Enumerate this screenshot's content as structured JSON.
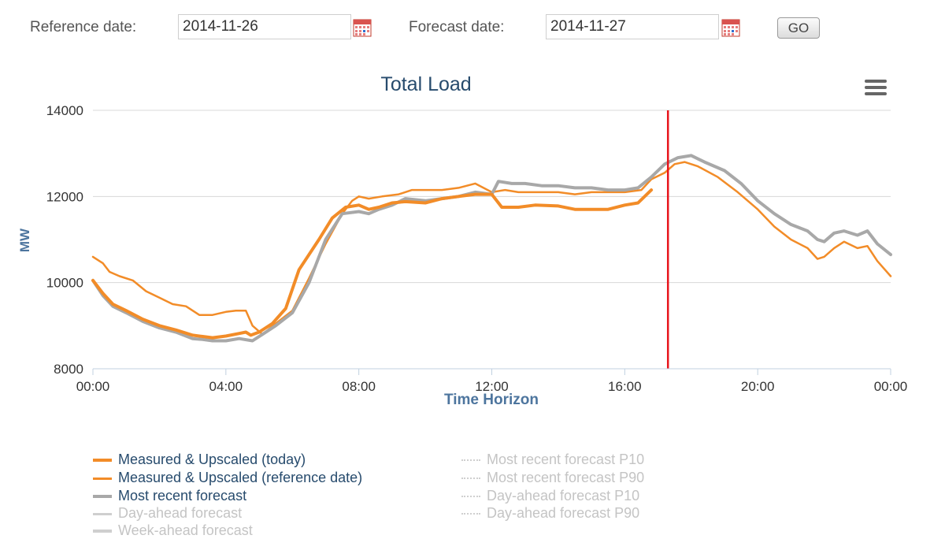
{
  "controls": {
    "reference_label": "Reference date:",
    "reference_value": "2014-11-26",
    "forecast_label": "Forecast date:",
    "forecast_value": "2014-11-27",
    "go_label": "GO",
    "calendar_icon": "calendar-icon"
  },
  "menu_icon": "hamburger-menu-icon",
  "colors": {
    "orange": "#f28c28",
    "gray": "#a8a8a8",
    "light_gray": "#cfcfcf",
    "red_marker": "#e8141b",
    "title": "#274b6d",
    "axis_title": "#4d759e",
    "grid": "#d8d8d8"
  },
  "chart_data": {
    "type": "line",
    "title": "Total Load",
    "xlabel": "Time Horizon",
    "ylabel": "MW",
    "xlim": [
      0,
      24
    ],
    "ylim": [
      8000,
      14000
    ],
    "y_ticks": [
      "8000",
      "10000",
      "12000",
      "14000"
    ],
    "x_ticks": [
      "00:00",
      "04:00",
      "08:00",
      "12:00",
      "16:00",
      "20:00",
      "00:00"
    ],
    "grid": "horizontal",
    "current_time_marker": 17.3,
    "series": [
      {
        "name": "Measured & Upscaled (today)",
        "style": "thick-orange",
        "x": [
          0,
          0.3,
          0.6,
          1,
          1.5,
          2,
          2.5,
          3,
          3.3,
          3.6,
          4,
          4.4,
          4.6,
          4.75,
          5,
          5.4,
          5.8,
          6.2,
          6.8,
          7.2,
          7.6,
          8,
          8.3,
          8.6,
          9,
          9.4,
          10,
          10.5,
          11,
          11.5,
          12,
          12.3,
          12.8,
          13.3,
          14,
          14.5,
          15,
          15.5,
          16,
          16.4,
          16.8
        ],
        "values": [
          10050,
          9750,
          9500,
          9350,
          9150,
          9000,
          8900,
          8780,
          8750,
          8720,
          8760,
          8820,
          8850,
          8780,
          8850,
          9050,
          9400,
          10300,
          11000,
          11500,
          11750,
          11800,
          11700,
          11750,
          11850,
          11880,
          11850,
          11950,
          12000,
          12050,
          12050,
          11750,
          11750,
          11800,
          11780,
          11700,
          11700,
          11700,
          11800,
          11850,
          12150
        ]
      },
      {
        "name": "Measured & Upscaled (reference date)",
        "style": "thin-orange",
        "x": [
          0,
          0.3,
          0.5,
          0.8,
          1.2,
          1.6,
          2,
          2.4,
          2.8,
          3.2,
          3.6,
          4,
          4.3,
          4.6,
          4.8,
          5.1,
          5.5,
          6,
          6.5,
          7,
          7.5,
          7.8,
          8,
          8.3,
          8.7,
          9.2,
          9.6,
          10,
          10.5,
          11,
          11.5,
          12,
          12.4,
          12.8,
          13.3,
          14,
          14.5,
          15,
          15.5,
          16,
          16.5,
          16.8,
          17.2,
          17.5,
          17.8,
          18.2,
          18.8,
          19.4,
          20,
          20.5,
          21,
          21.5,
          21.8,
          22,
          22.3,
          22.6,
          23,
          23.3,
          23.6,
          24
        ],
        "values": [
          10600,
          10450,
          10250,
          10150,
          10050,
          9800,
          9650,
          9500,
          9450,
          9250,
          9250,
          9320,
          9350,
          9350,
          9000,
          8800,
          9050,
          9350,
          10100,
          10900,
          11600,
          11900,
          12000,
          11950,
          12000,
          12050,
          12150,
          12150,
          12150,
          12200,
          12300,
          12100,
          12150,
          12100,
          12100,
          12100,
          12050,
          12100,
          12100,
          12100,
          12150,
          12400,
          12550,
          12750,
          12800,
          12700,
          12450,
          12100,
          11700,
          11300,
          11000,
          10800,
          10550,
          10600,
          10800,
          10950,
          10800,
          10850,
          10500,
          10150
        ]
      },
      {
        "name": "Most recent forecast",
        "style": "thick-gray",
        "x": [
          0,
          0.3,
          0.6,
          1,
          1.5,
          2,
          2.5,
          3,
          3.3,
          3.6,
          4,
          4.4,
          4.8,
          5.1,
          5.5,
          6,
          6.5,
          7,
          7.5,
          8,
          8.3,
          8.6,
          9,
          9.4,
          10,
          10.5,
          11,
          11.5,
          12,
          12.2,
          12.6,
          13,
          13.5,
          14,
          14.5,
          15,
          15.5,
          16,
          16.4,
          16.8,
          17.2,
          17.6,
          18,
          18.4,
          19,
          19.5,
          20,
          20.5,
          21,
          21.5,
          21.8,
          22,
          22.3,
          22.6,
          23,
          23.3,
          23.6,
          24
        ],
        "values": [
          10050,
          9700,
          9450,
          9300,
          9100,
          8950,
          8850,
          8700,
          8680,
          8650,
          8650,
          8700,
          8650,
          8800,
          9000,
          9300,
          10000,
          11000,
          11600,
          11650,
          11600,
          11700,
          11800,
          11950,
          11900,
          11950,
          12000,
          12100,
          12050,
          12350,
          12300,
          12300,
          12250,
          12250,
          12200,
          12200,
          12150,
          12150,
          12200,
          12450,
          12750,
          12900,
          12950,
          12800,
          12600,
          12300,
          11900,
          11600,
          11350,
          11200,
          11000,
          10950,
          11150,
          11200,
          11100,
          11200,
          10900,
          10650
        ]
      },
      {
        "name": "Day-ahead forecast",
        "style": "thin-lightgray",
        "hidden": true,
        "x": [],
        "values": []
      },
      {
        "name": "Week-ahead forecast",
        "style": "thick-lightgray",
        "hidden": true,
        "x": [],
        "values": []
      },
      {
        "name": "Most recent forecast P10",
        "style": "dotted",
        "hidden": true,
        "x": [],
        "values": []
      },
      {
        "name": "Most recent forecast P90",
        "style": "dotted",
        "hidden": true,
        "x": [],
        "values": []
      },
      {
        "name": "Day-ahead forecast P10",
        "style": "dotted",
        "hidden": true,
        "x": [],
        "values": []
      },
      {
        "name": "Day-ahead forecast P90",
        "style": "dotted",
        "hidden": true,
        "x": [],
        "values": []
      }
    ]
  }
}
